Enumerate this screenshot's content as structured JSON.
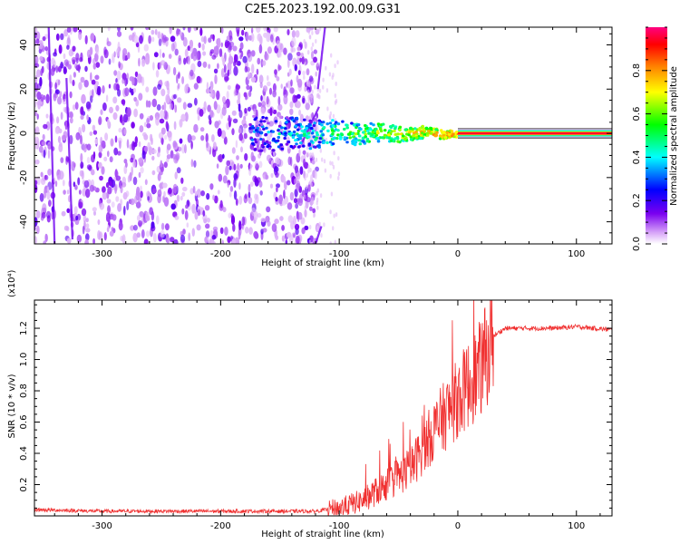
{
  "title": "C2E5.2023.192.00.09.G31",
  "chart_data": [
    {
      "type": "heatmap",
      "xlabel": "Height of straight line (km)",
      "ylabel": "Frequency (Hz)",
      "xlim": [
        -357,
        130
      ],
      "ylim": [
        -50,
        48
      ],
      "xticks": [
        -300,
        -200,
        -100,
        0,
        100
      ],
      "yticks": [
        -40,
        -20,
        0,
        20,
        40
      ],
      "colorbar": {
        "label": "Normalized spectral amplitude",
        "range": [
          0.0,
          1.0
        ],
        "ticks": [
          0.0,
          0.2,
          0.4,
          0.6,
          0.8
        ],
        "colormap": "rainbow",
        "colors": [
          "#f0d8f8",
          "#7a00f0",
          "#0000ff",
          "#00ffff",
          "#00ff00",
          "#ffff00",
          "#ff8000",
          "#ff0000",
          "#ff0080"
        ]
      },
      "features": {
        "noise_region_x": [
          -357,
          -128
        ],
        "signal_line_frequency": 0.0,
        "signal_line_x": [
          0,
          130
        ],
        "signal_line_amplitude": 0.95,
        "transition_x": [
          -175,
          0
        ]
      }
    },
    {
      "type": "line",
      "xlabel": "Height of straight line (km)",
      "ylabel": "SNR (10 * v/v)",
      "yscale_label": "(x10⁴)",
      "xlim": [
        -357,
        130
      ],
      "ylim": [
        0,
        1.38
      ],
      "xticks": [
        -300,
        -200,
        -100,
        0,
        100
      ],
      "yticks": [
        0.2,
        0.4,
        0.6,
        0.8,
        1.0,
        1.2
      ],
      "color": "#f03030",
      "series": [
        {
          "x": [
            -357,
            -300,
            -200,
            -120,
            -100,
            -80,
            -60,
            -40,
            -20,
            0,
            20,
            30,
            40,
            60,
            80,
            100,
            130
          ],
          "y": [
            0.04,
            0.03,
            0.03,
            0.03,
            0.05,
            0.1,
            0.2,
            0.3,
            0.55,
            0.75,
            0.95,
            1.15,
            1.2,
            1.2,
            1.2,
            1.21,
            1.19
          ]
        }
      ]
    }
  ]
}
